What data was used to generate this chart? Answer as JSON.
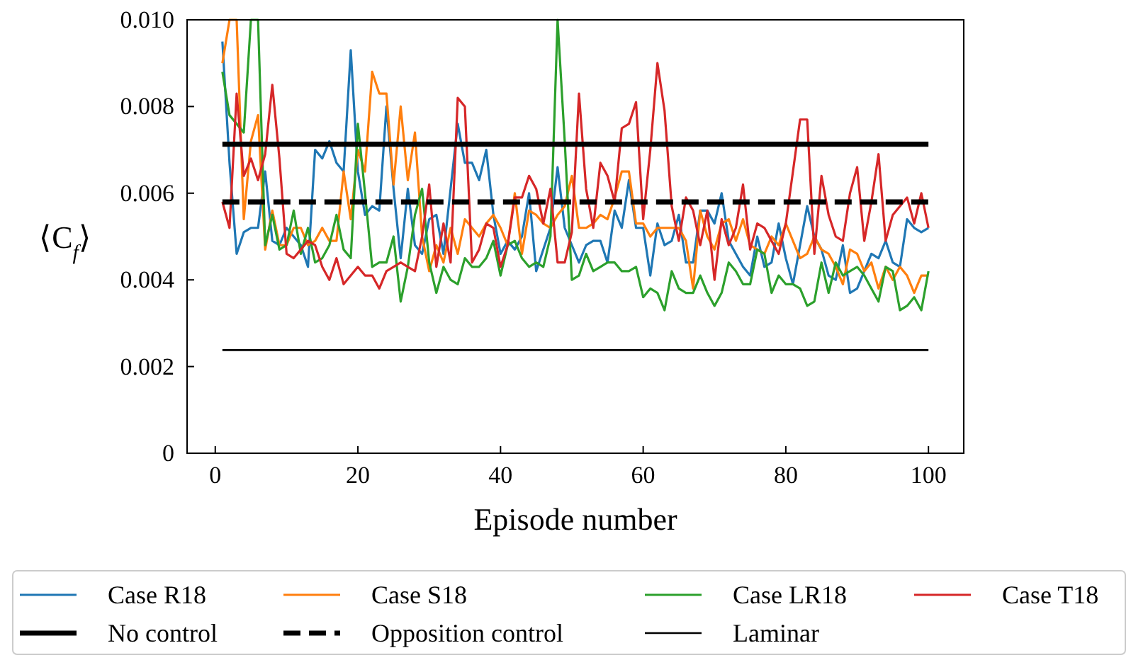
{
  "chart_data": {
    "type": "line",
    "xlabel": "Episode number",
    "ylabel": "⟨C$_{f}$⟩",
    "xlim": [
      -3.95,
      104.95
    ],
    "xticks": [
      0,
      20,
      40,
      60,
      80,
      100
    ],
    "ylim": [
      0,
      0.01
    ],
    "yticks": [
      0,
      0.002,
      0.004,
      0.006,
      0.008,
      {
        "value": 0.01,
        "label": "0.010"
      }
    ],
    "grid": false,
    "legend": "bottom",
    "marker": "none",
    "x": [
      1,
      2,
      3,
      4,
      5,
      6,
      7,
      8,
      9,
      10,
      11,
      12,
      13,
      14,
      15,
      16,
      17,
      18,
      19,
      20,
      21,
      22,
      23,
      24,
      25,
      26,
      27,
      28,
      29,
      30,
      31,
      32,
      33,
      34,
      35,
      36,
      37,
      38,
      39,
      40,
      41,
      42,
      43,
      44,
      45,
      46,
      47,
      48,
      49,
      50,
      51,
      52,
      53,
      54,
      55,
      56,
      57,
      58,
      59,
      60,
      61,
      62,
      63,
      64,
      65,
      66,
      67,
      68,
      69,
      70,
      71,
      72,
      73,
      74,
      75,
      76,
      77,
      78,
      79,
      80,
      81,
      82,
      83,
      84,
      85,
      86,
      87,
      88,
      89,
      90,
      91,
      92,
      93,
      94,
      95,
      96,
      97,
      98,
      99,
      100
    ],
    "series": [
      {
        "name": "Case R18",
        "color": "#1f77b4",
        "values": [
          0.0095,
          0.0067,
          0.0046,
          0.0051,
          0.0052,
          0.0052,
          0.0065,
          0.0049,
          0.0048,
          0.0052,
          0.005,
          0.0048,
          0.0043,
          0.007,
          0.0068,
          0.0072,
          0.0067,
          0.0065,
          0.0093,
          0.0065,
          0.0055,
          0.0057,
          0.0056,
          0.008,
          0.0061,
          0.0045,
          0.0061,
          0.0048,
          0.0046,
          0.0054,
          0.0055,
          0.0046,
          0.0061,
          0.0076,
          0.0067,
          0.0067,
          0.0063,
          0.007,
          0.0055,
          0.0046,
          0.0049,
          0.0047,
          0.005,
          0.006,
          0.0042,
          0.0047,
          0.0052,
          0.0066,
          0.0052,
          0.0048,
          0.0044,
          0.0048,
          0.0049,
          0.0049,
          0.0044,
          0.0056,
          0.0052,
          0.0063,
          0.0052,
          0.0052,
          0.0041,
          0.0053,
          0.0048,
          0.0049,
          0.0055,
          0.0044,
          0.0044,
          0.0056,
          0.0056,
          0.0053,
          0.006,
          0.0049,
          0.0046,
          0.0043,
          0.0041,
          0.005,
          0.0043,
          0.0044,
          0.0053,
          0.0045,
          0.0039,
          0.0048,
          0.0057,
          0.005,
          0.0047,
          0.0041,
          0.004,
          0.0048,
          0.0037,
          0.0038,
          0.0042,
          0.0046,
          0.0045,
          0.0049,
          0.0044,
          0.0043,
          0.0054,
          0.0052,
          0.0051,
          0.0052
        ]
      },
      {
        "name": "Case S18",
        "color": "#ff7f0e",
        "values": [
          0.009,
          0.01,
          0.01,
          0.0054,
          0.0072,
          0.0078,
          0.0047,
          0.0056,
          0.0048,
          0.0048,
          0.0052,
          0.0052,
          0.0048,
          0.0049,
          0.0052,
          0.0049,
          0.0049,
          0.0065,
          0.0054,
          0.007,
          0.0065,
          0.0088,
          0.0083,
          0.0083,
          0.0062,
          0.008,
          0.0063,
          0.0074,
          0.005,
          0.0042,
          0.0048,
          0.0044,
          0.0052,
          0.0046,
          0.0054,
          0.0052,
          0.005,
          0.0053,
          0.0055,
          0.0052,
          0.0048,
          0.006,
          0.0046,
          0.0056,
          0.0055,
          0.0053,
          0.0052,
          0.0055,
          0.0057,
          0.0064,
          0.0052,
          0.0052,
          0.0053,
          0.0055,
          0.0054,
          0.0059,
          0.0065,
          0.0065,
          0.0053,
          0.0053,
          0.005,
          0.0052,
          0.0052,
          0.0052,
          0.0052,
          0.0049,
          0.0038,
          0.0056,
          0.005,
          0.0047,
          0.0053,
          0.0054,
          0.0049,
          0.0054,
          0.0048,
          0.0047,
          0.0046,
          0.005,
          0.0048,
          0.0053,
          0.0049,
          0.0045,
          0.0046,
          0.005,
          0.0047,
          0.0046,
          0.0043,
          0.0039,
          0.0047,
          0.0046,
          0.0042,
          0.0044,
          0.0038,
          0.0043,
          0.004,
          0.0043,
          0.0041,
          0.0037,
          0.0041,
          0.0041
        ]
      },
      {
        "name": "Case LR18",
        "color": "#2ca02c",
        "values": [
          0.0088,
          0.0078,
          0.0076,
          0.0074,
          0.01,
          0.01,
          0.0048,
          0.0055,
          0.0047,
          0.0048,
          0.0056,
          0.0046,
          0.0052,
          0.0044,
          0.0045,
          0.0048,
          0.0055,
          0.0047,
          0.0045,
          0.0076,
          0.006,
          0.0043,
          0.0044,
          0.0044,
          0.005,
          0.0035,
          0.0043,
          0.0055,
          0.0061,
          0.0044,
          0.0037,
          0.0043,
          0.004,
          0.0039,
          0.0045,
          0.0043,
          0.0043,
          0.0045,
          0.0049,
          0.0041,
          0.0048,
          0.0049,
          0.0045,
          0.0043,
          0.0044,
          0.0043,
          0.005,
          0.01,
          0.0072,
          0.004,
          0.0041,
          0.0046,
          0.0042,
          0.0043,
          0.0044,
          0.0044,
          0.0042,
          0.0042,
          0.0043,
          0.0036,
          0.0038,
          0.0037,
          0.0033,
          0.0042,
          0.0038,
          0.0037,
          0.0037,
          0.0041,
          0.0037,
          0.0034,
          0.0037,
          0.0044,
          0.0042,
          0.0039,
          0.0039,
          0.0047,
          0.0046,
          0.0037,
          0.0041,
          0.0039,
          0.0039,
          0.0038,
          0.0034,
          0.0035,
          0.0044,
          0.0037,
          0.0044,
          0.0041,
          0.0042,
          0.0043,
          0.0041,
          0.0038,
          0.0035,
          0.0043,
          0.0042,
          0.0033,
          0.0034,
          0.0036,
          0.0033,
          0.0042
        ]
      },
      {
        "name": "Case T18",
        "color": "#d62728",
        "values": [
          0.0058,
          0.0052,
          0.0083,
          0.0064,
          0.0068,
          0.0063,
          0.0069,
          0.0085,
          0.0068,
          0.0046,
          0.0045,
          0.0047,
          0.0049,
          0.0048,
          0.0043,
          0.004,
          0.0045,
          0.0039,
          0.0041,
          0.0043,
          0.0041,
          0.0041,
          0.0038,
          0.0042,
          0.0043,
          0.0044,
          0.0043,
          0.0042,
          0.005,
          0.0062,
          0.0043,
          0.0053,
          0.0044,
          0.0082,
          0.008,
          0.0044,
          0.0047,
          0.0053,
          0.0052,
          0.0043,
          0.0048,
          0.0059,
          0.0059,
          0.0064,
          0.0061,
          0.0053,
          0.0061,
          0.0044,
          0.0044,
          0.0051,
          0.0083,
          0.0061,
          0.0052,
          0.0067,
          0.0064,
          0.0058,
          0.0075,
          0.0076,
          0.0081,
          0.0054,
          0.007,
          0.009,
          0.0079,
          0.0057,
          0.0049,
          0.0059,
          0.0056,
          0.0048,
          0.0056,
          0.004,
          0.0054,
          0.0048,
          0.0052,
          0.0062,
          0.0047,
          0.0053,
          0.0052,
          0.0049,
          0.0046,
          0.0053,
          0.0065,
          0.0077,
          0.0077,
          0.0046,
          0.0064,
          0.0055,
          0.005,
          0.0049,
          0.006,
          0.0066,
          0.0049,
          0.0058,
          0.0069,
          0.0049,
          0.0055,
          0.0057,
          0.0059,
          0.0053,
          0.006,
          0.0052
        ]
      },
      {
        "name": "No control",
        "color": "#000000",
        "line_style": "solid",
        "values": [
          0.00713,
          0.00713,
          0.00713,
          0.00713,
          0.00713,
          0.00713,
          0.00713,
          0.00713,
          0.00713,
          0.00713,
          0.00713,
          0.00713,
          0.00713,
          0.00713,
          0.00713,
          0.00713,
          0.00713,
          0.00713,
          0.00713,
          0.00713,
          0.00713,
          0.00713,
          0.00713,
          0.00713,
          0.00713,
          0.00713,
          0.00713,
          0.00713,
          0.00713,
          0.00713,
          0.00713,
          0.00713,
          0.00713,
          0.00713,
          0.00713,
          0.00713,
          0.00713,
          0.00713,
          0.00713,
          0.00713,
          0.00713,
          0.00713,
          0.00713,
          0.00713,
          0.00713,
          0.00713,
          0.00713,
          0.00713,
          0.00713,
          0.00713,
          0.00713,
          0.00713,
          0.00713,
          0.00713,
          0.00713,
          0.00713,
          0.00713,
          0.00713,
          0.00713,
          0.00713,
          0.00713,
          0.00713,
          0.00713,
          0.00713,
          0.00713,
          0.00713,
          0.00713,
          0.00713,
          0.00713,
          0.00713,
          0.00713,
          0.00713,
          0.00713,
          0.00713,
          0.00713,
          0.00713,
          0.00713,
          0.00713,
          0.00713,
          0.00713,
          0.00713,
          0.00713,
          0.00713,
          0.00713,
          0.00713,
          0.00713,
          0.00713,
          0.00713,
          0.00713,
          0.00713,
          0.00713,
          0.00713,
          0.00713,
          0.00713,
          0.00713,
          0.00713,
          0.00713,
          0.00713,
          0.00713,
          0.00713
        ]
      },
      {
        "name": "Opposition control",
        "color": "#000000",
        "line_style": "dashed",
        "values": [
          0.0058,
          0.0058,
          0.0058,
          0.0058,
          0.0058,
          0.0058,
          0.0058,
          0.0058,
          0.0058,
          0.0058,
          0.0058,
          0.0058,
          0.0058,
          0.0058,
          0.0058,
          0.0058,
          0.0058,
          0.0058,
          0.0058,
          0.0058,
          0.0058,
          0.0058,
          0.0058,
          0.0058,
          0.0058,
          0.0058,
          0.0058,
          0.0058,
          0.0058,
          0.0058,
          0.0058,
          0.0058,
          0.0058,
          0.0058,
          0.0058,
          0.0058,
          0.0058,
          0.0058,
          0.0058,
          0.0058,
          0.0058,
          0.0058,
          0.0058,
          0.0058,
          0.0058,
          0.0058,
          0.0058,
          0.0058,
          0.0058,
          0.0058,
          0.0058,
          0.0058,
          0.0058,
          0.0058,
          0.0058,
          0.0058,
          0.0058,
          0.0058,
          0.0058,
          0.0058,
          0.0058,
          0.0058,
          0.0058,
          0.0058,
          0.0058,
          0.0058,
          0.0058,
          0.0058,
          0.0058,
          0.0058,
          0.0058,
          0.0058,
          0.0058,
          0.0058,
          0.0058,
          0.0058,
          0.0058,
          0.0058,
          0.0058,
          0.0058,
          0.0058,
          0.0058,
          0.0058,
          0.0058,
          0.0058,
          0.0058,
          0.0058,
          0.0058,
          0.0058,
          0.0058,
          0.0058,
          0.0058,
          0.0058,
          0.0058,
          0.0058,
          0.0058,
          0.0058,
          0.0058,
          0.0058,
          0.0058
        ]
      },
      {
        "name": "Laminar",
        "color": "#000000",
        "line_style": "solid",
        "values": [
          0.00238,
          0.00238,
          0.00238,
          0.00238,
          0.00238,
          0.00238,
          0.00238,
          0.00238,
          0.00238,
          0.00238,
          0.00238,
          0.00238,
          0.00238,
          0.00238,
          0.00238,
          0.00238,
          0.00238,
          0.00238,
          0.00238,
          0.00238,
          0.00238,
          0.00238,
          0.00238,
          0.00238,
          0.00238,
          0.00238,
          0.00238,
          0.00238,
          0.00238,
          0.00238,
          0.00238,
          0.00238,
          0.00238,
          0.00238,
          0.00238,
          0.00238,
          0.00238,
          0.00238,
          0.00238,
          0.00238,
          0.00238,
          0.00238,
          0.00238,
          0.00238,
          0.00238,
          0.00238,
          0.00238,
          0.00238,
          0.00238,
          0.00238,
          0.00238,
          0.00238,
          0.00238,
          0.00238,
          0.00238,
          0.00238,
          0.00238,
          0.00238,
          0.00238,
          0.00238,
          0.00238,
          0.00238,
          0.00238,
          0.00238,
          0.00238,
          0.00238,
          0.00238,
          0.00238,
          0.00238,
          0.00238,
          0.00238,
          0.00238,
          0.00238,
          0.00238,
          0.00238,
          0.00238,
          0.00238,
          0.00238,
          0.00238,
          0.00238,
          0.00238,
          0.00238,
          0.00238,
          0.00238,
          0.00238,
          0.00238,
          0.00238,
          0.00238,
          0.00238,
          0.00238,
          0.00238,
          0.00238,
          0.00238,
          0.00238,
          0.00238,
          0.00238,
          0.00238,
          0.00238,
          0.00238,
          0.00238
        ]
      }
    ]
  }
}
